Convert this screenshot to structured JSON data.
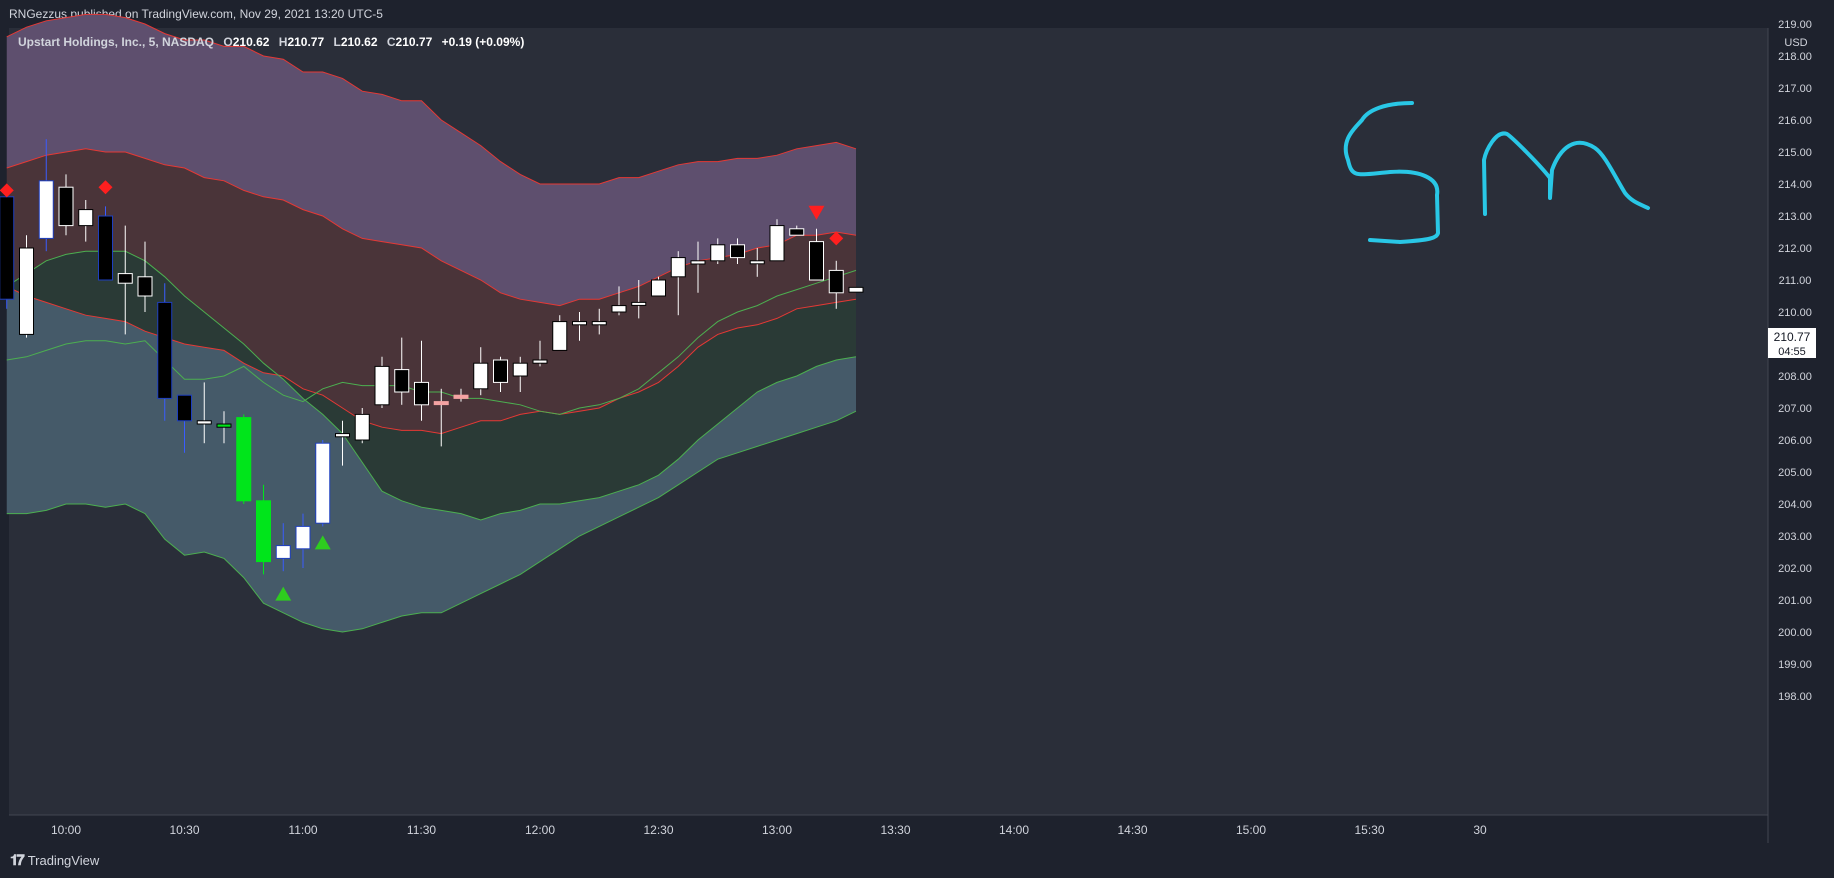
{
  "header": {
    "published_text": "RNGezzus published on TradingView.com, Nov 29, 2021 13:20 UTC-5"
  },
  "legend": {
    "name": "Upstart Holdings, Inc., 5, NASDAQ",
    "open_label": "O",
    "open": "210.62",
    "high_label": "H",
    "high": "210.77",
    "low_label": "L",
    "low": "210.62",
    "close_label": "C",
    "close": "210.77",
    "change": "+0.19 (+0.09%)"
  },
  "price_axis": {
    "currency": "USD",
    "last_price": "210.77",
    "countdown": "04:55"
  },
  "annotation": {
    "handwritten": "5m",
    "color": "#29c7e6"
  },
  "brand": {
    "name": "TradingView",
    "logo_icon": "tradingview-logo-icon"
  },
  "colors": {
    "background": "#2a2e39",
    "upper_band_fill": "#5e4f6e",
    "mid_upper_fill": "#4a3439",
    "mid_lower_fill": "#2a3a36",
    "lower_band_fill": "#455a69",
    "red_band": "#e53935",
    "green_band": "#4caf50",
    "signal_red": "#ff1f1f",
    "signal_green": "#2ecc1f",
    "bull_candle": "#ffffff",
    "bear_candle": "#000000",
    "highlight_green": "#00e51b",
    "highlight_pink": "#f4a3a3"
  },
  "chart_data": {
    "type": "candlestick",
    "symbol": "Upstart Holdings, Inc.",
    "interval": "5",
    "exchange": "NASDAQ",
    "ylim": [
      198,
      219
    ],
    "y_ticks": [
      "198.00",
      "199.00",
      "200.00",
      "201.00",
      "202.00",
      "203.00",
      "204.00",
      "205.00",
      "206.00",
      "207.00",
      "208.00",
      "209.00",
      "210.00",
      "211.00",
      "212.00",
      "213.00",
      "214.00",
      "215.00",
      "216.00",
      "217.00",
      "218.00",
      "219.00"
    ],
    "x_ticks": [
      "10:00",
      "10:30",
      "11:00",
      "11:30",
      "12:00",
      "12:30",
      "13:00",
      "13:30",
      "14:00",
      "14:30",
      "15:00",
      "15:30",
      "30"
    ],
    "candles": [
      {
        "t": "09:45",
        "o": 213.6,
        "h": 213.9,
        "l": 210.1,
        "c": 210.4,
        "style": "dark-blue"
      },
      {
        "t": "09:50",
        "o": 209.3,
        "h": 212.4,
        "l": 209.2,
        "c": 212.0
      },
      {
        "t": "09:55",
        "o": 212.3,
        "h": 215.4,
        "l": 211.9,
        "c": 214.1,
        "style": "blue-border"
      },
      {
        "t": "10:00",
        "o": 213.9,
        "h": 214.3,
        "l": 212.4,
        "c": 212.7
      },
      {
        "t": "10:05",
        "o": 212.7,
        "h": 213.5,
        "l": 212.2,
        "c": 213.2
      },
      {
        "t": "10:10",
        "o": 213.0,
        "h": 213.3,
        "l": 211.0,
        "c": 211.0,
        "style": "dark-blue"
      },
      {
        "t": "10:15",
        "o": 211.2,
        "h": 212.7,
        "l": 209.3,
        "c": 210.9
      },
      {
        "t": "10:20",
        "o": 211.1,
        "h": 212.2,
        "l": 210.0,
        "c": 210.5
      },
      {
        "t": "10:25",
        "o": 210.3,
        "h": 210.9,
        "l": 206.6,
        "c": 207.3,
        "style": "dark-blue"
      },
      {
        "t": "10:30",
        "o": 207.4,
        "h": 207.4,
        "l": 205.6,
        "c": 206.6,
        "style": "dark-blue"
      },
      {
        "t": "10:35",
        "o": 206.5,
        "h": 207.8,
        "l": 205.9,
        "c": 206.6
      },
      {
        "t": "10:40",
        "o": 206.5,
        "h": 206.9,
        "l": 205.9,
        "c": 206.4,
        "style": "green-small"
      },
      {
        "t": "10:45",
        "o": 206.7,
        "h": 206.8,
        "l": 204.0,
        "c": 204.1,
        "style": "green"
      },
      {
        "t": "10:50",
        "o": 204.1,
        "h": 204.6,
        "l": 201.8,
        "c": 202.2,
        "style": "green"
      },
      {
        "t": "10:55",
        "o": 202.3,
        "h": 203.4,
        "l": 201.9,
        "c": 202.7,
        "style": "blue-border"
      },
      {
        "t": "11:00",
        "o": 202.6,
        "h": 203.7,
        "l": 202.0,
        "c": 203.3,
        "style": "blue-border"
      },
      {
        "t": "11:05",
        "o": 203.4,
        "h": 206.0,
        "l": 203.3,
        "c": 205.9,
        "style": "blue-border"
      },
      {
        "t": "11:10",
        "o": 206.1,
        "h": 206.6,
        "l": 205.2,
        "c": 206.2
      },
      {
        "t": "11:15",
        "o": 206.0,
        "h": 207.0,
        "l": 205.9,
        "c": 206.8
      },
      {
        "t": "11:20",
        "o": 207.1,
        "h": 208.6,
        "l": 207.0,
        "c": 208.3
      },
      {
        "t": "11:25",
        "o": 208.2,
        "h": 209.2,
        "l": 207.1,
        "c": 207.5
      },
      {
        "t": "11:30",
        "o": 207.8,
        "h": 209.1,
        "l": 206.6,
        "c": 207.1
      },
      {
        "t": "11:35",
        "o": 207.2,
        "h": 207.6,
        "l": 205.8,
        "c": 207.2,
        "style": "pink"
      },
      {
        "t": "11:40",
        "o": 207.3,
        "h": 207.6,
        "l": 207.2,
        "c": 207.4,
        "style": "pink"
      },
      {
        "t": "11:45",
        "o": 207.6,
        "h": 208.9,
        "l": 207.4,
        "c": 208.4
      },
      {
        "t": "11:50",
        "o": 208.5,
        "h": 208.6,
        "l": 207.5,
        "c": 207.8
      },
      {
        "t": "11:55",
        "o": 208.0,
        "h": 208.6,
        "l": 207.5,
        "c": 208.4
      },
      {
        "t": "12:00",
        "o": 208.4,
        "h": 209.1,
        "l": 208.3,
        "c": 208.5
      },
      {
        "t": "12:05",
        "o": 208.8,
        "h": 209.9,
        "l": 208.8,
        "c": 209.7
      },
      {
        "t": "12:10",
        "o": 209.6,
        "h": 210.0,
        "l": 209.1,
        "c": 209.7
      },
      {
        "t": "12:15",
        "o": 209.6,
        "h": 210.1,
        "l": 209.3,
        "c": 209.7
      },
      {
        "t": "12:20",
        "o": 210.0,
        "h": 210.8,
        "l": 209.9,
        "c": 210.2
      },
      {
        "t": "12:25",
        "o": 210.3,
        "h": 211.0,
        "l": 209.8,
        "c": 210.3
      },
      {
        "t": "12:30",
        "o": 210.5,
        "h": 211.1,
        "l": 210.5,
        "c": 211.0
      },
      {
        "t": "12:35",
        "o": 211.1,
        "h": 211.9,
        "l": 209.9,
        "c": 211.7
      },
      {
        "t": "12:40",
        "o": 211.5,
        "h": 212.2,
        "l": 210.6,
        "c": 211.6
      },
      {
        "t": "12:45",
        "o": 211.6,
        "h": 212.3,
        "l": 211.5,
        "c": 212.1
      },
      {
        "t": "12:50",
        "o": 212.1,
        "h": 212.3,
        "l": 211.5,
        "c": 211.7
      },
      {
        "t": "12:55",
        "o": 211.6,
        "h": 212.0,
        "l": 211.1,
        "c": 211.6
      },
      {
        "t": "13:00",
        "o": 211.6,
        "h": 212.9,
        "l": 211.6,
        "c": 212.7
      },
      {
        "t": "13:05",
        "o": 212.6,
        "h": 212.7,
        "l": 212.5,
        "c": 212.4
      },
      {
        "t": "13:10",
        "o": 212.2,
        "h": 212.6,
        "l": 211.0,
        "c": 211.0
      },
      {
        "t": "13:15",
        "o": 211.3,
        "h": 211.6,
        "l": 210.1,
        "c": 210.6
      },
      {
        "t": "13:20",
        "o": 210.62,
        "h": 210.77,
        "l": 210.62,
        "c": 210.77
      }
    ],
    "bands": {
      "red_upper": [
        218.6,
        218.9,
        219.1,
        219.2,
        219.3,
        219.3,
        219.2,
        219.0,
        218.7,
        218.5,
        218.5,
        218.3,
        218.3,
        218.0,
        217.9,
        217.5,
        217.5,
        217.3,
        216.9,
        216.8,
        216.6,
        216.6,
        216.0,
        215.6,
        215.2,
        214.7,
        214.3,
        214.0,
        214.0,
        214.0,
        214.0,
        214.2,
        214.2,
        214.4,
        214.6,
        214.7,
        214.7,
        214.8,
        214.8,
        214.9,
        215.1,
        215.2,
        215.3,
        215.1
      ],
      "red_mid": [
        214.5,
        214.7,
        214.9,
        215.0,
        215.1,
        215.0,
        215.0,
        214.8,
        214.6,
        214.5,
        214.2,
        214.1,
        213.8,
        213.6,
        213.5,
        213.2,
        213.0,
        212.6,
        212.3,
        212.2,
        212.1,
        212.0,
        211.6,
        211.3,
        211.0,
        210.6,
        210.4,
        210.3,
        210.2,
        210.4,
        210.4,
        210.6,
        210.8,
        211.1,
        211.4,
        211.6,
        211.7,
        211.8,
        212.0,
        212.1,
        212.4,
        212.4,
        212.5,
        212.4
      ],
      "red_lower": [
        210.8,
        210.5,
        210.3,
        210.1,
        209.9,
        209.8,
        209.7,
        209.4,
        209.2,
        209.0,
        208.9,
        208.8,
        208.4,
        208.1,
        208.0,
        207.6,
        207.4,
        207.0,
        206.6,
        206.4,
        206.3,
        206.3,
        206.2,
        206.4,
        206.6,
        206.6,
        206.8,
        206.9,
        206.8,
        206.9,
        207.0,
        207.3,
        207.5,
        207.8,
        208.3,
        208.9,
        209.3,
        209.5,
        209.6,
        209.8,
        210.1,
        210.2,
        210.3,
        210.4
      ],
      "green_mid": [
        210.8,
        211.2,
        211.6,
        211.8,
        211.9,
        211.9,
        211.9,
        211.6,
        211.1,
        210.5,
        210.0,
        209.5,
        209.0,
        208.4,
        207.9,
        207.3,
        206.8,
        206.2,
        205.3,
        204.4,
        204.1,
        203.9,
        203.8,
        203.7,
        203.5,
        203.7,
        203.8,
        204.0,
        204.0,
        204.1,
        204.2,
        204.4,
        204.6,
        204.9,
        205.4,
        206.0,
        206.5,
        207.0,
        207.5,
        207.8,
        208.0,
        208.3,
        208.5,
        208.6
      ],
      "green_upper": [
        208.5,
        208.6,
        208.8,
        209.0,
        209.1,
        209.1,
        209.0,
        209.1,
        208.5,
        207.9,
        207.9,
        208.0,
        208.3,
        207.8,
        207.4,
        207.2,
        207.6,
        207.8,
        207.7,
        207.7,
        207.7,
        207.5,
        207.5,
        207.3,
        207.3,
        207.2,
        207.1,
        206.9,
        206.8,
        207.0,
        207.1,
        207.3,
        207.6,
        208.1,
        208.6,
        209.2,
        209.7,
        210.0,
        210.2,
        210.5,
        210.7,
        210.9,
        211.1,
        211.3
      ],
      "green_lower": [
        203.7,
        203.7,
        203.8,
        204.0,
        204.0,
        203.9,
        204.0,
        203.7,
        202.9,
        202.4,
        202.5,
        202.3,
        201.7,
        200.9,
        200.6,
        200.3,
        200.1,
        200.0,
        200.1,
        200.3,
        200.5,
        200.6,
        200.6,
        200.9,
        201.2,
        201.5,
        201.8,
        202.2,
        202.6,
        203.0,
        203.3,
        203.6,
        203.9,
        204.2,
        204.6,
        205.0,
        205.4,
        205.6,
        205.8,
        206.0,
        206.2,
        206.4,
        206.6,
        206.9
      ]
    },
    "signals": [
      {
        "t": "09:45",
        "shape": "diamond",
        "color": "red",
        "price": 213.8
      },
      {
        "t": "10:10",
        "shape": "diamond",
        "color": "red",
        "price": 213.9
      },
      {
        "t": "13:10",
        "shape": "triangle-down",
        "color": "red",
        "price": 213.1
      },
      {
        "t": "13:15",
        "shape": "diamond",
        "color": "red",
        "price": 212.3
      },
      {
        "t": "10:55",
        "shape": "triangle-up",
        "color": "green",
        "price": 201.2
      },
      {
        "t": "11:05",
        "shape": "triangle-up",
        "color": "green",
        "price": 202.8
      }
    ]
  }
}
